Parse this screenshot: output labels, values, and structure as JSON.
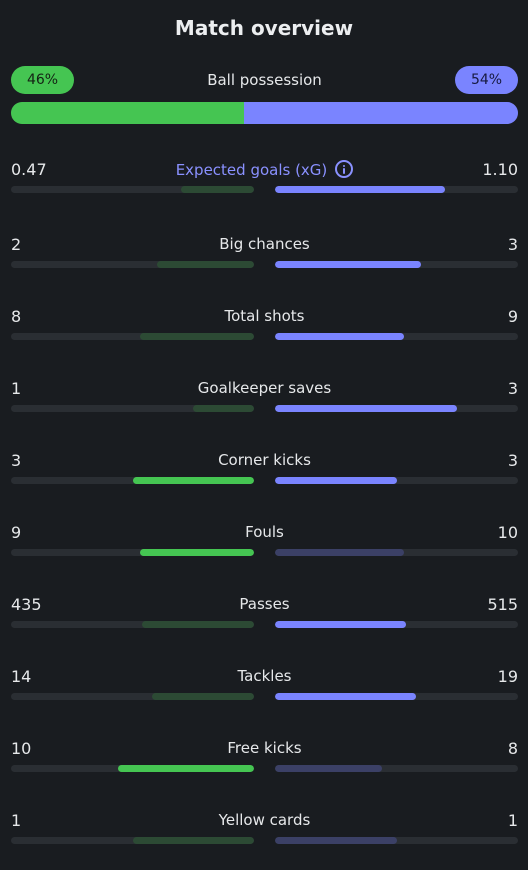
{
  "title": "Match overview",
  "colors": {
    "home_strong": "#45c552",
    "home_weak": "#2c4a34",
    "away_strong": "#7a84ff",
    "away_weak": "#3b4066",
    "track": "#2a2e33"
  },
  "possession": {
    "label": "Ball possession",
    "home": "46%",
    "away": "54%",
    "home_pct": 46,
    "away_pct": 54
  },
  "stats": [
    {
      "label": "Expected goals (xG)",
      "home": "0.47",
      "away": "1.10",
      "home_frac": 0.3,
      "away_frac": 0.7,
      "home_style": "weak",
      "away_style": "strong",
      "accent": true,
      "info": true
    },
    {
      "label": "Big chances",
      "home": "2",
      "away": "3",
      "home_frac": 0.4,
      "away_frac": 0.6,
      "home_style": "weak",
      "away_style": "strong"
    },
    {
      "label": "Total shots",
      "home": "8",
      "away": "9",
      "home_frac": 0.47,
      "away_frac": 0.53,
      "home_style": "weak",
      "away_style": "strong"
    },
    {
      "label": "Goalkeeper saves",
      "home": "1",
      "away": "3",
      "home_frac": 0.25,
      "away_frac": 0.75,
      "home_style": "weak",
      "away_style": "strong"
    },
    {
      "label": "Corner kicks",
      "home": "3",
      "away": "3",
      "home_frac": 0.5,
      "away_frac": 0.5,
      "home_style": "strong",
      "away_style": "strong"
    },
    {
      "label": "Fouls",
      "home": "9",
      "away": "10",
      "home_frac": 0.47,
      "away_frac": 0.53,
      "home_style": "strong",
      "away_style": "weak"
    },
    {
      "label": "Passes",
      "home": "435",
      "away": "515",
      "home_frac": 0.46,
      "away_frac": 0.54,
      "home_style": "weak",
      "away_style": "strong"
    },
    {
      "label": "Tackles",
      "home": "14",
      "away": "19",
      "home_frac": 0.42,
      "away_frac": 0.58,
      "home_style": "weak",
      "away_style": "strong"
    },
    {
      "label": "Free kicks",
      "home": "10",
      "away": "8",
      "home_frac": 0.56,
      "away_frac": 0.44,
      "home_style": "strong",
      "away_style": "weak"
    },
    {
      "label": "Yellow cards",
      "home": "1",
      "away": "1",
      "home_frac": 0.5,
      "away_frac": 0.5,
      "home_style": "weak",
      "away_style": "weak"
    }
  ]
}
